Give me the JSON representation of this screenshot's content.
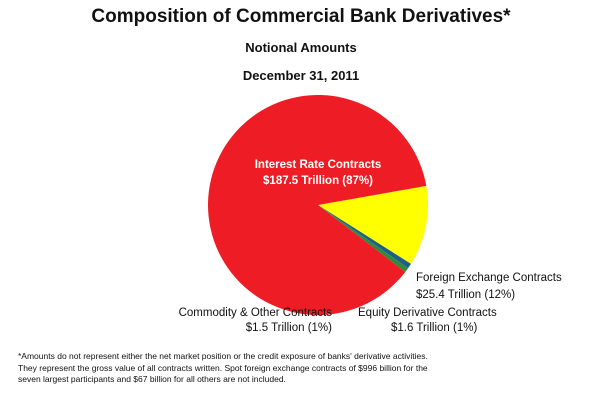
{
  "title": "Composition of Commercial Bank Derivatives*",
  "subtitle": "Notional Amounts",
  "date": "December 31, 2011",
  "chart_data": {
    "type": "pie",
    "unit": "Trillion",
    "slices": [
      {
        "name": "Interest Rate Contracts",
        "label": "$187.5 Trillion (87%)",
        "value": 187.5,
        "percent": 87,
        "color": "#ee1c24"
      },
      {
        "name": "Foreign Exchange Contracts",
        "label": "$25.4 Trillion (12%)",
        "value": 25.4,
        "percent": 12,
        "color": "#ffff00"
      },
      {
        "name": "Equity Derivative Contracts",
        "label": "$1.6 Trillion (1%)",
        "value": 1.6,
        "percent": 1,
        "color": "#1f5c8a"
      },
      {
        "name": "Commodity & Other Contracts",
        "label": "$1.5 Trillion (1%)",
        "value": 1.5,
        "percent": 1,
        "color": "#2e8b3a"
      }
    ]
  },
  "footnote": [
    "*Amounts do not represent either the net market position or the credit exposure of banks' derivative activities.",
    "They represent the gross value of all contracts written. Spot foreign exchange contracts of $996 billion for the",
    "seven largest participants and $67 billion for all others are not included."
  ]
}
